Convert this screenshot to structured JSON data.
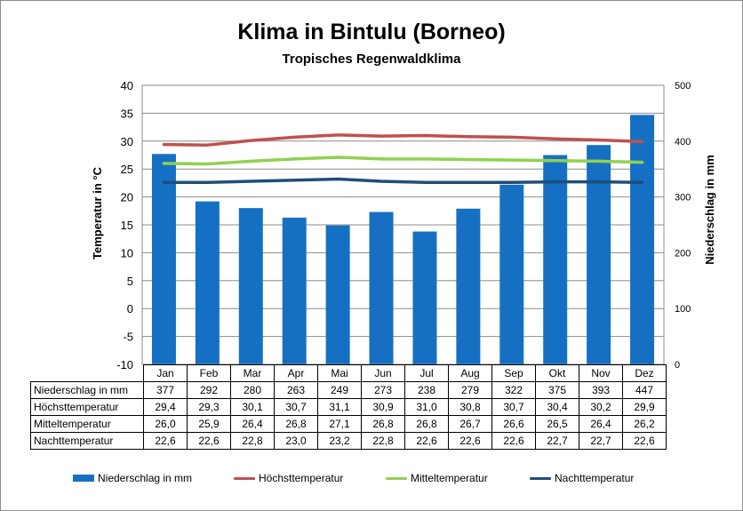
{
  "chart_data": {
    "type": "bar+line",
    "title": "Klima in Bintulu (Borneo)",
    "subtitle": "Tropisches Regenwaldklima",
    "ylabel": "Temperatur in °C",
    "y2label": "Niederschlag in mm",
    "ylim": [
      -10,
      40
    ],
    "yticks": [
      "40",
      "35",
      "30",
      "25",
      "20",
      "15",
      "10",
      "5",
      "0",
      "-5",
      "-10"
    ],
    "y2lim": [
      0,
      500
    ],
    "y2ticks": [
      "500",
      "400",
      "300",
      "200",
      "100",
      "0"
    ],
    "grid": true,
    "legend_position": "bottom",
    "categories": [
      "Jan",
      "Feb",
      "Mar",
      "Apr",
      "Mai",
      "Jun",
      "Jul",
      "Aug",
      "Sep",
      "Okt",
      "Nov",
      "Dez"
    ],
    "series": [
      {
        "name": "Niederschlag in mm",
        "kind": "bar",
        "axis": "right",
        "color": "#1570c4",
        "values": [
          377,
          292,
          280,
          263,
          249,
          273,
          238,
          279,
          322,
          375,
          393,
          447
        ],
        "labels": [
          "377",
          "292",
          "280",
          "263",
          "249",
          "273",
          "238",
          "279",
          "322",
          "375",
          "393",
          "447"
        ]
      },
      {
        "name": "Höchsttemperatur",
        "kind": "line",
        "axis": "left",
        "color": "#c0504d",
        "values": [
          29.4,
          29.3,
          30.1,
          30.7,
          31.1,
          30.9,
          31.0,
          30.8,
          30.7,
          30.4,
          30.2,
          29.9
        ],
        "labels": [
          "29,4",
          "29,3",
          "30,1",
          "30,7",
          "31,1",
          "30,9",
          "31,0",
          "30,8",
          "30,7",
          "30,4",
          "30,2",
          "29,9"
        ]
      },
      {
        "name": "Mitteltemperatur",
        "kind": "line",
        "axis": "left",
        "color": "#92d050",
        "values": [
          26.0,
          25.9,
          26.4,
          26.8,
          27.1,
          26.8,
          26.8,
          26.7,
          26.6,
          26.5,
          26.4,
          26.2
        ],
        "labels": [
          "26,0",
          "25,9",
          "26,4",
          "26,8",
          "27,1",
          "26,8",
          "26,8",
          "26,7",
          "26,6",
          "26,5",
          "26,4",
          "26,2"
        ]
      },
      {
        "name": "Nachttemperatur",
        "kind": "line",
        "axis": "left",
        "color": "#1f4e79",
        "values": [
          22.6,
          22.6,
          22.8,
          23.0,
          23.2,
          22.8,
          22.6,
          22.6,
          22.6,
          22.7,
          22.7,
          22.6
        ],
        "labels": [
          "22,6",
          "22,6",
          "22,8",
          "23,0",
          "23,2",
          "22,8",
          "22,6",
          "22,6",
          "22,6",
          "22,7",
          "22,7",
          "22,6"
        ]
      }
    ]
  }
}
